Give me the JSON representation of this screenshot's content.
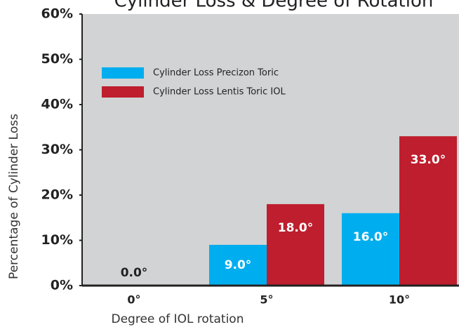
{
  "chart_data": {
    "type": "bar",
    "title": "Cylinder Loss & Degree of Rotation",
    "xlabel": "Degree of IOL rotation",
    "ylabel": "Percentage of Cylinder Loss",
    "categories": [
      "0°",
      "5°",
      "10°"
    ],
    "series": [
      {
        "name": "Cylinder Loss Precizon Toric",
        "color": "#00aeef",
        "values": [
          0,
          9,
          16
        ],
        "value_labels": [
          "0.0°",
          "9.0°",
          "16.0°"
        ]
      },
      {
        "name": "Cylinder Loss Lentis Toric IOL",
        "color": "#be1e2d",
        "values": [
          0,
          18,
          33
        ],
        "value_labels": [
          null,
          "18.0°",
          "33.0°"
        ]
      }
    ],
    "ylim": [
      0,
      60
    ],
    "yticks": [
      {
        "value": 0,
        "label": "0%"
      },
      {
        "value": 10,
        "label": "10%"
      },
      {
        "value": 20,
        "label": "20%"
      },
      {
        "value": 30,
        "label": "30%"
      },
      {
        "value": 40,
        "label": "40%"
      },
      {
        "value": 50,
        "label": "50%"
      },
      {
        "value": 60,
        "label": "60%"
      }
    ],
    "legend": "upper left"
  }
}
